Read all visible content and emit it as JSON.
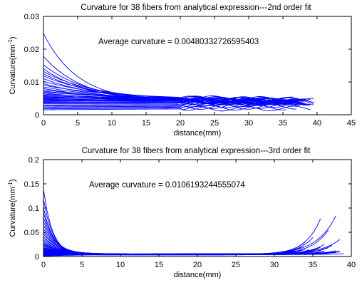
{
  "colors": {
    "axis": "#000000",
    "fiber": "#0000ff",
    "background": "#ffffff"
  },
  "chart_data": [
    {
      "type": "line",
      "title": "Curvature for 38 fibers from analytical expression---2nd order fit",
      "xlabel": "distance(mm)",
      "ylabel_main": "Curvature(mm",
      "ylabel_sup": "-1",
      "ylabel_close": ")",
      "annotation": "Average curvature = 0.00480332726595403",
      "annotation_x": 13,
      "annotation_y": 0.0225,
      "xlim": [
        0,
        45
      ],
      "ylim": [
        0,
        0.03
      ],
      "xticks": [
        0,
        5,
        10,
        15,
        20,
        25,
        30,
        35,
        40,
        45
      ],
      "yticks": [
        0,
        0.01,
        0.02,
        0.03
      ],
      "ytick_labels": [
        "0",
        "0.01",
        "0.02",
        "0.03"
      ],
      "grid": false,
      "fiber_count": 38,
      "model": "exponential",
      "series": [
        {
          "a": 0.0248,
          "b": 0.004,
          "c": 0.2,
          "x_end": 39.5
        },
        {
          "a": 0.0178,
          "b": 0.0038,
          "c": 0.17,
          "x_end": 38.5
        },
        {
          "a": 0.0152,
          "b": 0.0042,
          "c": 0.15,
          "x_end": 39.0
        },
        {
          "a": 0.014,
          "b": 0.0036,
          "c": 0.14,
          "x_end": 37.5
        },
        {
          "a": 0.0132,
          "b": 0.0044,
          "c": 0.13,
          "x_end": 38.0
        },
        {
          "a": 0.0125,
          "b": 0.0035,
          "c": 0.12,
          "x_end": 36.5
        },
        {
          "a": 0.0118,
          "b": 0.0045,
          "c": 0.12,
          "x_end": 37.0
        },
        {
          "a": 0.011,
          "b": 0.0038,
          "c": 0.11,
          "x_end": 39.5
        },
        {
          "a": 0.0102,
          "b": 0.0043,
          "c": 0.1,
          "x_end": 35.5
        },
        {
          "a": 0.0095,
          "b": 0.0037,
          "c": 0.1,
          "x_end": 38.0
        },
        {
          "a": 0.009,
          "b": 0.0046,
          "c": 0.09,
          "x_end": 36.0
        },
        {
          "a": 0.0085,
          "b": 0.004,
          "c": 0.09,
          "x_end": 37.5
        },
        {
          "a": 0.008,
          "b": 0.0034,
          "c": 0.08,
          "x_end": 39.0
        },
        {
          "a": 0.0076,
          "b": 0.0042,
          "c": 0.08,
          "x_end": 35.0
        },
        {
          "a": 0.0072,
          "b": 0.0039,
          "c": 0.07,
          "x_end": 38.5
        },
        {
          "a": 0.0069,
          "b": 0.0045,
          "c": 0.07,
          "x_end": 36.5
        },
        {
          "a": 0.0066,
          "b": 0.0036,
          "c": 0.07,
          "x_end": 37.0
        },
        {
          "a": 0.0063,
          "b": 0.0041,
          "c": 0.06,
          "x_end": 39.5
        },
        {
          "a": 0.006,
          "b": 0.0038,
          "c": 0.06,
          "x_end": 34.5
        },
        {
          "a": 0.0058,
          "b": 0.0044,
          "c": 0.06,
          "x_end": 38.0
        },
        {
          "a": 0.0056,
          "b": 0.0035,
          "c": 0.05,
          "x_end": 36.0
        },
        {
          "a": 0.0054,
          "b": 0.004,
          "c": 0.05,
          "x_end": 37.5
        },
        {
          "a": 0.0052,
          "b": 0.0043,
          "c": 0.05,
          "x_end": 35.5
        },
        {
          "a": 0.005,
          "b": 0.0037,
          "c": 0.05,
          "x_end": 39.0
        },
        {
          "a": 0.0048,
          "b": 0.0041,
          "c": 0.04,
          "x_end": 36.5
        },
        {
          "a": 0.0046,
          "b": 0.0039,
          "c": 0.04,
          "x_end": 38.5
        },
        {
          "a": 0.0044,
          "b": 0.0036,
          "c": 0.04,
          "x_end": 37.0
        },
        {
          "a": 0.0042,
          "b": 0.0042,
          "c": 0.03,
          "x_end": 35.0
        },
        {
          "a": 0.004,
          "b": 0.0034,
          "c": 0.03,
          "x_end": 38.0
        },
        {
          "a": 0.0038,
          "b": 0.004,
          "c": 0.03,
          "x_end": 36.0
        },
        {
          "a": 0.0036,
          "b": 0.0038,
          "c": 0.03,
          "x_end": 39.5
        },
        {
          "a": 0.0034,
          "b": 0.0035,
          "c": 0.02,
          "x_end": 37.5
        },
        {
          "a": 0.003,
          "b": 0.0033,
          "c": 0.02,
          "x_end": 34.0
        },
        {
          "a": 0.0027,
          "b": 0.0031,
          "c": 0.02,
          "x_end": 38.5
        },
        {
          "a": 0.0024,
          "b": 0.0029,
          "c": 0.02,
          "x_end": 36.0
        },
        {
          "a": 0.0021,
          "b": 0.0027,
          "c": 0.02,
          "x_end": 37.0
        },
        {
          "a": 0.0018,
          "b": 0.0025,
          "c": 0.02,
          "x_end": 35.5
        },
        {
          "a": 0.0015,
          "b": 0.0023,
          "c": 0.02,
          "x_end": 39.0
        }
      ]
    },
    {
      "type": "line",
      "title": "Curvature for 38 fibers from analytical expression---3rd order fit",
      "xlabel": "distance(mm)",
      "ylabel_main": "Curvature(mm",
      "ylabel_sup": "-1",
      "ylabel_close": ")",
      "annotation": "Average curvature = 0.0106193244555074",
      "annotation_x": 6,
      "annotation_y": 0.145,
      "xlim": [
        0,
        40
      ],
      "ylim": [
        0,
        0.2
      ],
      "xticks": [
        0,
        5,
        10,
        15,
        20,
        25,
        30,
        35,
        40
      ],
      "yticks": [
        0,
        0.05,
        0.1,
        0.15,
        0.2
      ],
      "ytick_labels": [
        "0",
        "0.05",
        "0.1",
        "0.15",
        "0.2"
      ],
      "grid": false,
      "fiber_count": 38,
      "model": "exp-plus-rise",
      "series": [
        {
          "a": 0.138,
          "k": 0.85,
          "m": 0.003,
          "r": 0.075,
          "x_end": 36.0,
          "s": 2.0
        },
        {
          "a": 0.118,
          "k": 0.8,
          "m": 0.004,
          "r": 0.08,
          "x_end": 38.0,
          "s": 2.5
        },
        {
          "a": 0.1,
          "k": 0.75,
          "m": 0.004,
          "r": 0.035,
          "x_end": 35.0,
          "s": 2.0
        },
        {
          "a": 0.09,
          "k": 0.7,
          "m": 0.005,
          "r": 0.025,
          "x_end": 34.0,
          "s": 1.8
        },
        {
          "a": 0.08,
          "k": 0.65,
          "m": 0.004,
          "r": 0.05,
          "x_end": 37.0,
          "s": 2.2
        },
        {
          "a": 0.072,
          "k": 0.62,
          "m": 0.005,
          "r": 0.02,
          "x_end": 36.5,
          "s": 2.0
        },
        {
          "a": 0.065,
          "k": 0.6,
          "m": 0.004,
          "r": 0.015,
          "x_end": 33.5,
          "s": 1.6
        },
        {
          "a": 0.058,
          "k": 0.58,
          "m": 0.005,
          "r": 0.03,
          "x_end": 38.5,
          "s": 2.4
        },
        {
          "a": 0.052,
          "k": 0.55,
          "m": 0.004,
          "r": 0.012,
          "x_end": 35.5,
          "s": 1.8
        },
        {
          "a": 0.047,
          "k": 0.52,
          "m": 0.005,
          "r": 0.018,
          "x_end": 37.5,
          "s": 2.0
        },
        {
          "a": 0.042,
          "k": 0.5,
          "m": 0.004,
          "r": 0.01,
          "x_end": 34.5,
          "s": 1.5
        },
        {
          "a": 0.038,
          "k": 0.48,
          "m": 0.005,
          "r": 0.014,
          "x_end": 36.0,
          "s": 1.9
        },
        {
          "a": 0.034,
          "k": 0.46,
          "m": 0.004,
          "r": 0.008,
          "x_end": 38.0,
          "s": 2.1
        },
        {
          "a": 0.031,
          "k": 0.44,
          "m": 0.005,
          "r": 0.011,
          "x_end": 33.0,
          "s": 1.5
        },
        {
          "a": 0.028,
          "k": 0.42,
          "m": 0.004,
          "r": 0.009,
          "x_end": 35.0,
          "s": 1.7
        },
        {
          "a": 0.026,
          "k": 0.4,
          "m": 0.005,
          "r": 0.013,
          "x_end": 37.0,
          "s": 2.0
        },
        {
          "a": 0.024,
          "k": 0.38,
          "m": 0.004,
          "r": 0.007,
          "x_end": 36.5,
          "s": 1.8
        },
        {
          "a": 0.022,
          "k": 0.36,
          "m": 0.005,
          "r": 0.01,
          "x_end": 34.0,
          "s": 1.6
        },
        {
          "a": 0.02,
          "k": 0.35,
          "m": 0.004,
          "r": 0.006,
          "x_end": 38.5,
          "s": 2.2
        },
        {
          "a": 0.018,
          "k": 0.34,
          "m": 0.005,
          "r": 0.009,
          "x_end": 35.5,
          "s": 1.7
        },
        {
          "a": 0.017,
          "k": 0.33,
          "m": 0.004,
          "r": 0.005,
          "x_end": 37.5,
          "s": 2.0
        },
        {
          "a": 0.016,
          "k": 0.32,
          "m": 0.005,
          "r": 0.008,
          "x_end": 33.5,
          "s": 1.5
        },
        {
          "a": 0.015,
          "k": 0.31,
          "m": 0.004,
          "r": 0.006,
          "x_end": 36.0,
          "s": 1.8
        },
        {
          "a": 0.014,
          "k": 0.3,
          "m": 0.005,
          "r": 0.007,
          "x_end": 34.5,
          "s": 1.6
        },
        {
          "a": 0.013,
          "k": 0.29,
          "m": 0.004,
          "r": 0.005,
          "x_end": 38.0,
          "s": 2.1
        },
        {
          "a": 0.012,
          "k": 0.28,
          "m": 0.005,
          "r": 0.006,
          "x_end": 35.0,
          "s": 1.7
        },
        {
          "a": 0.011,
          "k": 0.27,
          "m": 0.004,
          "r": 0.004,
          "x_end": 37.0,
          "s": 1.9
        },
        {
          "a": 0.01,
          "k": 0.26,
          "m": 0.005,
          "r": 0.005,
          "x_end": 36.5,
          "s": 1.8
        },
        {
          "a": 0.009,
          "k": 0.25,
          "m": 0.004,
          "r": 0.004,
          "x_end": 33.0,
          "s": 1.5
        },
        {
          "a": 0.008,
          "k": 0.24,
          "m": 0.005,
          "r": 0.006,
          "x_end": 38.5,
          "s": 2.2
        },
        {
          "a": 0.007,
          "k": 0.23,
          "m": 0.004,
          "r": 0.003,
          "x_end": 35.5,
          "s": 1.7
        },
        {
          "a": 0.006,
          "k": 0.22,
          "m": 0.005,
          "r": 0.004,
          "x_end": 37.5,
          "s": 2.0
        },
        {
          "a": 0.005,
          "k": 0.21,
          "m": 0.004,
          "r": 0.003,
          "x_end": 34.0,
          "s": 1.6
        },
        {
          "a": 0.004,
          "k": 0.2,
          "m": 0.005,
          "r": 0.004,
          "x_end": 36.0,
          "s": 1.8
        },
        {
          "a": 0.003,
          "k": 0.2,
          "m": 0.004,
          "r": 0.002,
          "x_end": 39.0,
          "s": 2.3
        },
        {
          "a": 0.002,
          "k": 0.2,
          "m": 0.005,
          "r": 0.003,
          "x_end": 35.0,
          "s": 1.7
        },
        {
          "a": 0.001,
          "k": 0.2,
          "m": 0.004,
          "r": 0.002,
          "x_end": 37.0,
          "s": 1.9
        },
        {
          "a": 0.001,
          "k": 0.2,
          "m": 0.006,
          "r": 0.002,
          "x_end": 38.0,
          "s": 2.0
        }
      ]
    }
  ]
}
